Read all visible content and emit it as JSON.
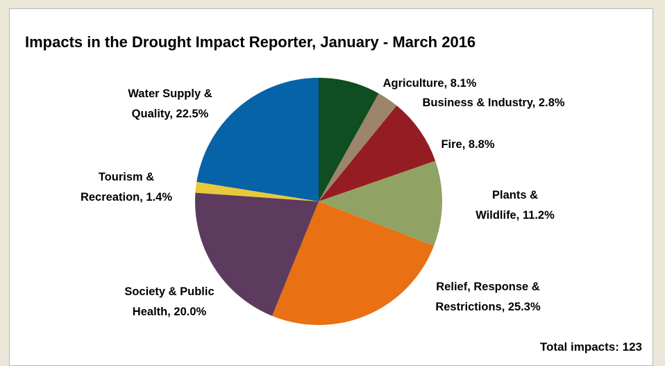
{
  "chart_data": {
    "type": "pie",
    "title": "Impacts in the Drought Impact Reporter, January - March 2016",
    "slices": [
      {
        "label": [
          "Agriculture, 8.1%"
        ],
        "value": 8.1,
        "color": "#0f4d22"
      },
      {
        "label": [
          "Business & Industry, 2.8%"
        ],
        "value": 2.8,
        "color": "#9c856b"
      },
      {
        "label": [
          "Fire, 8.8%"
        ],
        "value": 8.8,
        "color": "#951c23"
      },
      {
        "label": [
          "Plants &",
          "Wildlife, 11.2%"
        ],
        "value": 11.2,
        "color": "#91a364"
      },
      {
        "label": [
          "Relief, Response &",
          "Restrictions, 25.3%"
        ],
        "value": 25.3,
        "color": "#e97013"
      },
      {
        "label": [
          "Society & Public",
          "Health, 20.0%"
        ],
        "value": 20.0,
        "color": "#5d3b5f"
      },
      {
        "label": [
          "Tourism &",
          "Recreation, 1.4%"
        ],
        "value": 1.4,
        "color": "#e9c93a"
      },
      {
        "label": [
          "Water Supply &",
          "Quality, 22.5%"
        ],
        "value": 22.5,
        "color": "#0663a8"
      }
    ],
    "footer": "Total impacts: 123"
  },
  "colors": {
    "page_background": "#ece8d9",
    "panel_background": "#ffffff"
  }
}
